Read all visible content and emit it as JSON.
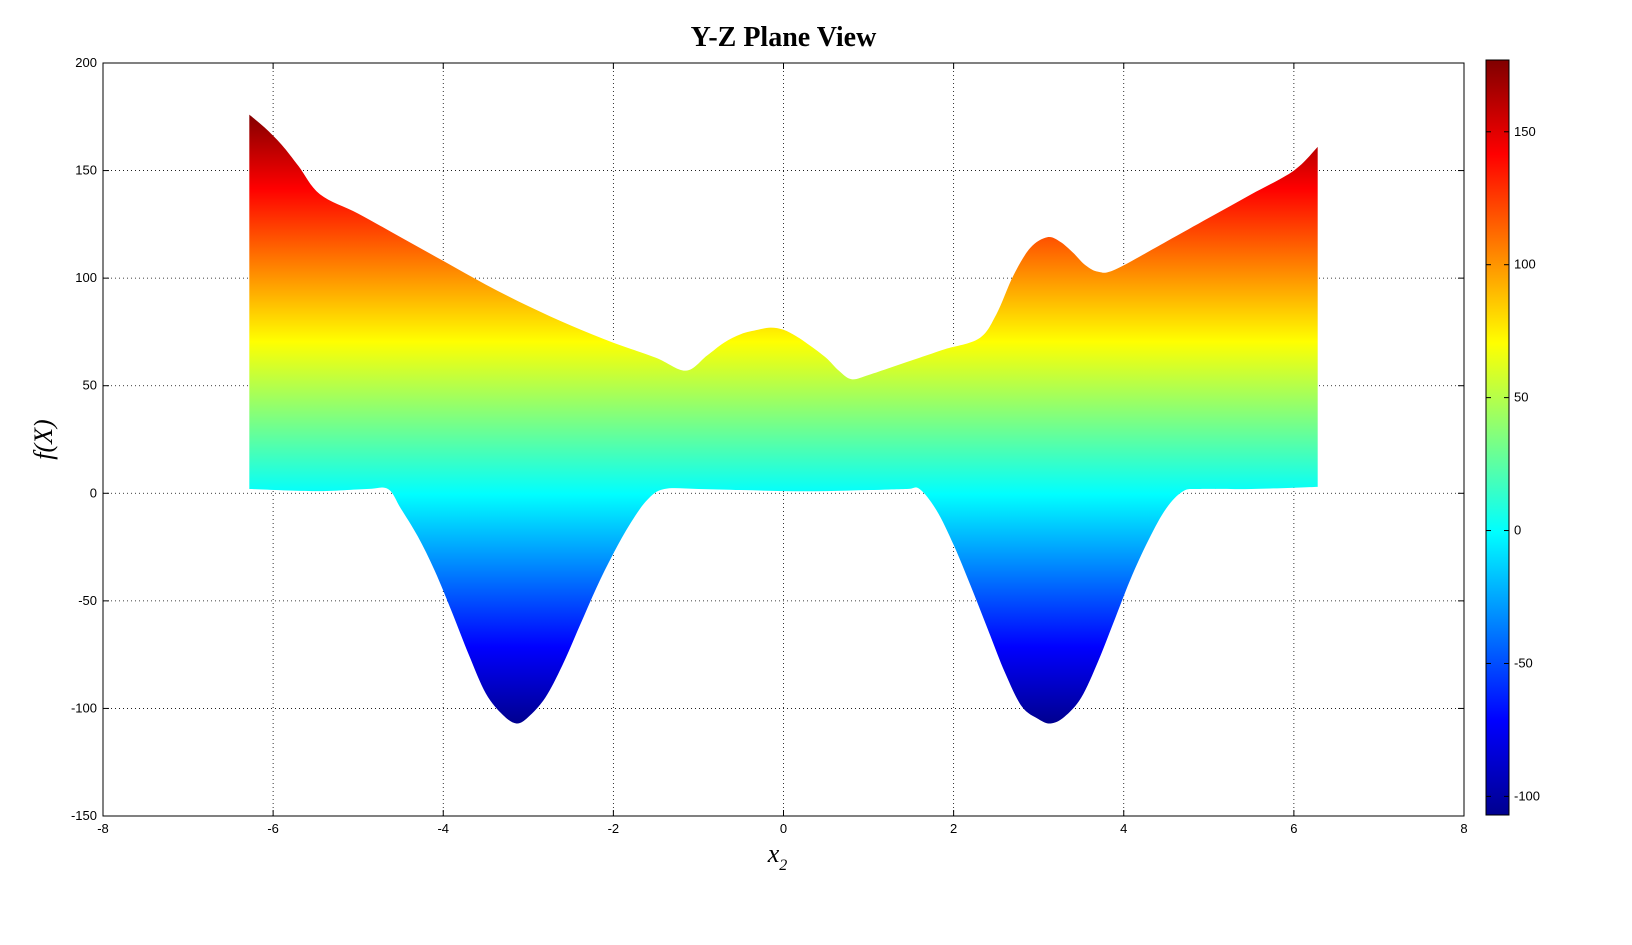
{
  "chart_data": {
    "type": "area",
    "title": "Y-Z Plane View",
    "xlabel": "x",
    "xlabel_subscript": "2",
    "ylabel": "f(X)",
    "xlim": [
      -8,
      8
    ],
    "ylim": [
      -150,
      200
    ],
    "xticks": [
      "-8",
      "-6",
      "-4",
      "-2",
      "0",
      "2",
      "4",
      "6",
      "8"
    ],
    "yticks": [
      "-150",
      "-100",
      "-50",
      "0",
      "50",
      "100",
      "150",
      "200"
    ],
    "grid": true,
    "colormap": "jet",
    "colorbar": {
      "range": [
        -107,
        177
      ],
      "ticks": [
        "-100",
        "-50",
        "0",
        "50",
        "100",
        "150"
      ]
    },
    "upper_envelope": {
      "x": [
        -6.28,
        -6.1,
        -5.9,
        -5.7,
        -5.45,
        -5.0,
        -4.5,
        -4.0,
        -3.5,
        -3.0,
        -2.5,
        -2.0,
        -1.5,
        -1.15,
        -0.9,
        -0.7,
        -0.5,
        -0.3,
        -0.15,
        0.0,
        0.15,
        0.3,
        0.5,
        0.65,
        0.8,
        1.0,
        1.3,
        1.6,
        1.9,
        2.3,
        2.5,
        2.7,
        2.9,
        3.1,
        3.25,
        3.4,
        3.55,
        3.7,
        3.9,
        4.5,
        5.0,
        5.5,
        6.0,
        6.28
      ],
      "y": [
        176,
        170,
        162,
        152,
        139,
        130,
        119,
        108,
        97,
        87,
        78,
        70,
        63,
        57,
        64,
        70,
        74,
        76,
        77,
        76,
        73,
        69,
        63,
        57,
        53,
        55,
        59,
        63,
        67,
        72,
        83,
        101,
        114,
        119,
        117,
        112,
        106,
        103,
        104,
        117,
        128,
        139,
        150,
        161
      ]
    },
    "lower_envelope": {
      "x": [
        -6.28,
        -5.5,
        -4.9,
        -4.65,
        -4.5,
        -4.3,
        -4.1,
        -3.9,
        -3.7,
        -3.5,
        -3.3,
        -3.14,
        -3.0,
        -2.8,
        -2.6,
        -2.4,
        -2.2,
        -2.0,
        -1.8,
        -1.6,
        -1.4,
        -1.0,
        -0.5,
        0.0,
        0.5,
        1.0,
        1.45,
        1.6,
        1.8,
        2.0,
        2.2,
        2.4,
        2.6,
        2.8,
        3.0,
        3.14,
        3.3,
        3.5,
        3.7,
        3.9,
        4.1,
        4.3,
        4.5,
        4.7,
        4.9,
        5.5,
        6.28
      ],
      "y": [
        2,
        1,
        2,
        2,
        -7,
        -20,
        -36,
        -55,
        -75,
        -93,
        -103,
        -107,
        -104,
        -95,
        -80,
        -62,
        -44,
        -28,
        -14,
        -3,
        2,
        2,
        1.5,
        1,
        1,
        1.5,
        2,
        2,
        -8,
        -24,
        -43,
        -63,
        -83,
        -99,
        -105,
        -107,
        -104,
        -95,
        -78,
        -58,
        -38,
        -21,
        -7,
        1,
        2,
        2,
        3
      ]
    }
  }
}
